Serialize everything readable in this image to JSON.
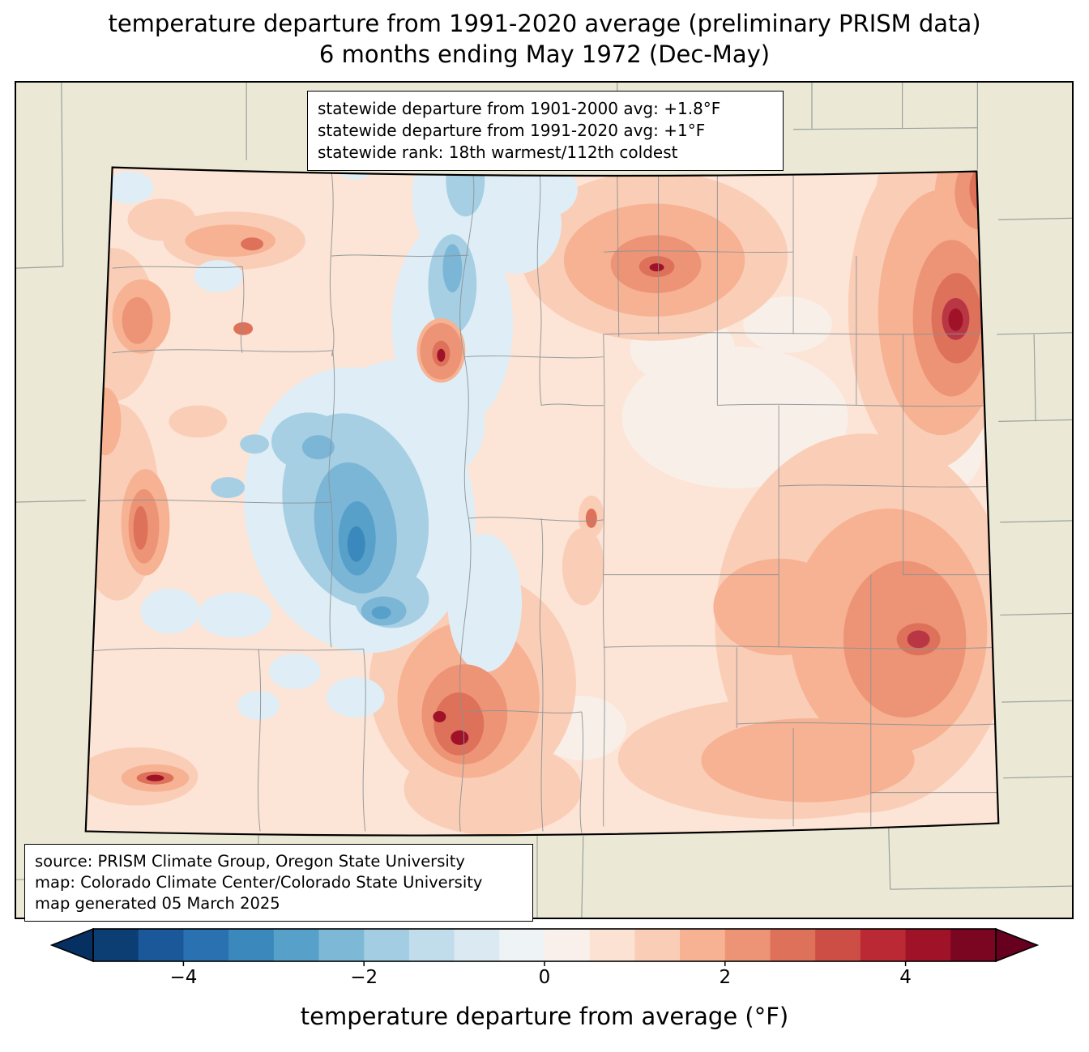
{
  "figure": {
    "title_line1": "temperature departure from 1991-2020 average (preliminary PRISM data)",
    "title_line2": "6 months ending May 1972 (Dec-May)"
  },
  "stats_box": {
    "line1": "statewide departure from 1901-2000 avg: +1.8°F",
    "line2": "statewide departure from 1991-2020 avg: +1°F",
    "line3": "statewide rank: 18th warmest/112th coldest"
  },
  "source_box": {
    "line1": "source: PRISM Climate Group, Oregon State University",
    "line2": "map: Colorado Climate Center/Colorado State University",
    "line3": "map generated 05 March 2025"
  },
  "colorbar": {
    "label": "temperature departure from average (°F)",
    "tick_labels": [
      "−4",
      "−2",
      "0",
      "2",
      "4"
    ],
    "tick_values": [
      -4,
      -2,
      0,
      2,
      4
    ],
    "value_range": [
      -5,
      5
    ],
    "segment_step": 0.5,
    "segments": [
      "#0c3e74",
      "#1a5899",
      "#2a71b2",
      "#3b88bd",
      "#57a0ca",
      "#7eb8d7",
      "#a2cde3",
      "#c1ddec",
      "#dbeaf2",
      "#eef3f5",
      "#f9f0eb",
      "#fce2d3",
      "#facdb6",
      "#f6b293",
      "#ec9475",
      "#de715a",
      "#cd4e45",
      "#bb2a34",
      "#9f1228",
      "#7a0622"
    ],
    "under_arrow_color": "#053061",
    "over_arrow_color": "#67001f"
  },
  "map": {
    "region_label": "Colorado",
    "land_color": "#ebe9d6",
    "state_border_color": "#000000",
    "county_line_color": "#8c9296",
    "base_anomaly_color": "#fce4d6"
  }
}
